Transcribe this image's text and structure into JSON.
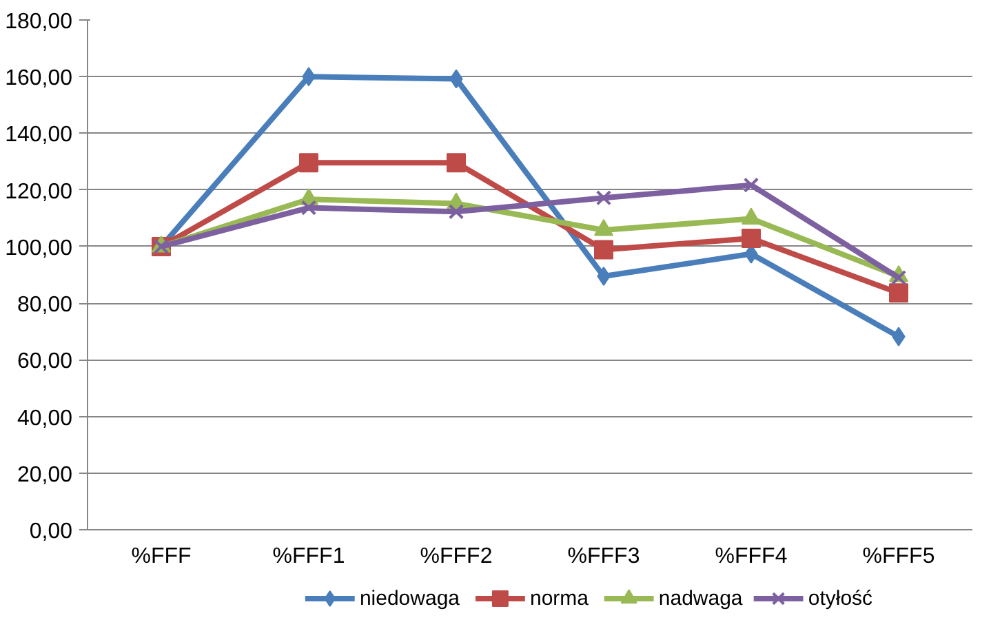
{
  "chart_data": {
    "type": "line",
    "categories": [
      "%FFF",
      "%FFF1",
      "%FFF2",
      "%FFF3",
      "%FFF4",
      "%FFF5"
    ],
    "series": [
      {
        "name": "niedowaga",
        "color": "#4a7ebb",
        "marker": "diamond",
        "values": [
          100,
          160,
          159.2,
          89.5,
          97.4,
          68.2
        ]
      },
      {
        "name": "norma",
        "color": "#be4b48",
        "marker": "square",
        "values": [
          100,
          129.6,
          129.6,
          98.9,
          102.9,
          83.6
        ]
      },
      {
        "name": "nadwaga",
        "color": "#98b954",
        "marker": "triangle",
        "values": [
          100,
          116.7,
          115.2,
          105.8,
          109.8,
          89.5
        ]
      },
      {
        "name": "otyłość",
        "color": "#7d60a0",
        "marker": "cross",
        "values": [
          100,
          113.7,
          112.3,
          117.2,
          121.7,
          89
        ]
      }
    ],
    "ylim": [
      0,
      180
    ],
    "yticks": [
      {
        "value": 0,
        "label": "0,00"
      },
      {
        "value": 20,
        "label": "20,00"
      },
      {
        "value": 40,
        "label": "40,00"
      },
      {
        "value": 60,
        "label": "60,00"
      },
      {
        "value": 80,
        "label": "80,00"
      },
      {
        "value": 100,
        "label": "100,00"
      },
      {
        "value": 120,
        "label": "120,00"
      },
      {
        "value": 140,
        "label": "140,00"
      },
      {
        "value": 160,
        "label": "160,00"
      },
      {
        "value": 180,
        "label": "180,00"
      }
    ],
    "grid": "y",
    "legend": "bottom",
    "line_style": "solid"
  }
}
